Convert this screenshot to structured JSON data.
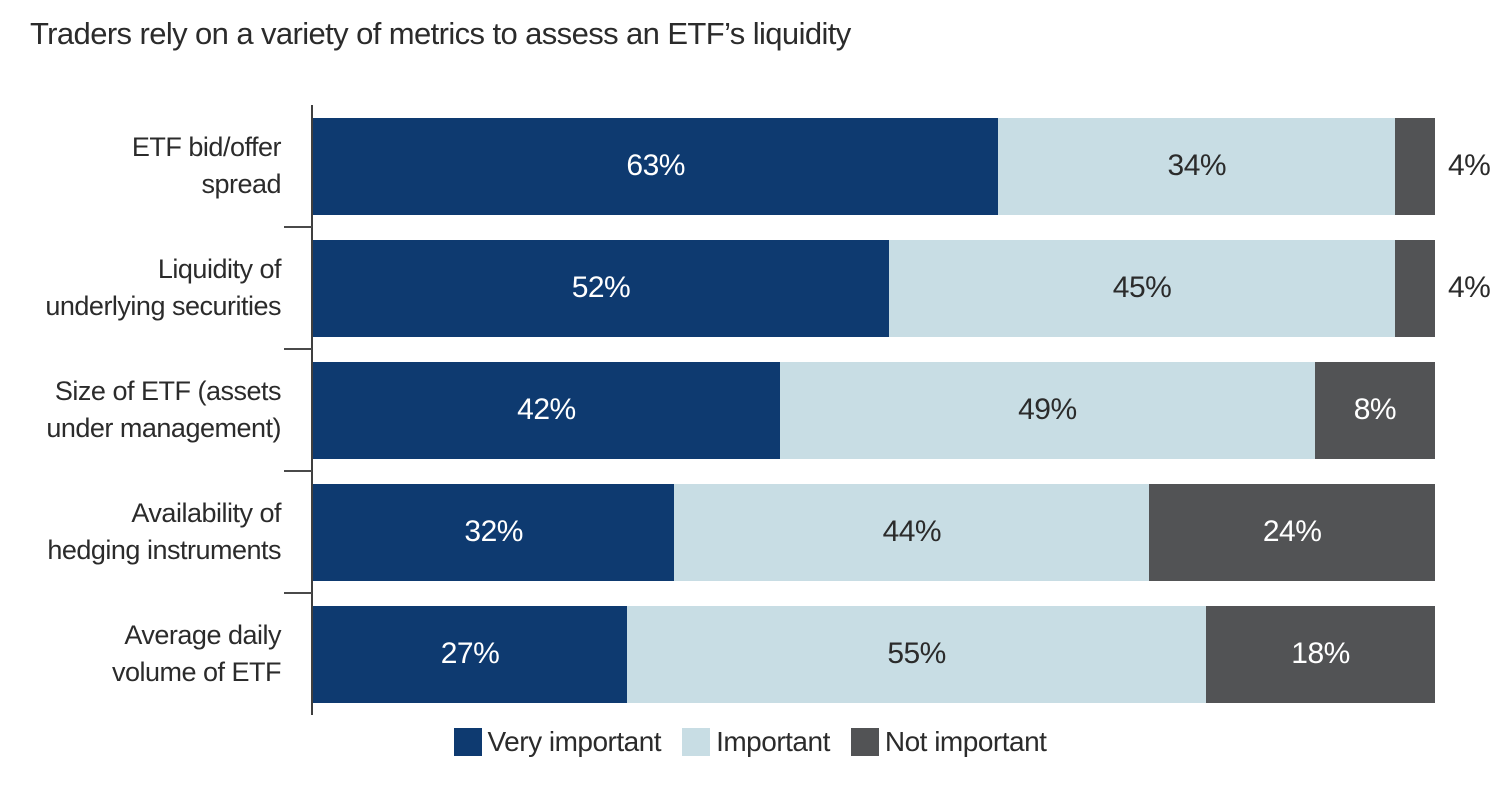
{
  "title": "Traders rely on a variety of metrics to assess an ETF’s liquidity",
  "colors": {
    "very_important": "#0e3a70",
    "important": "#c8dde4",
    "not_important": "#525355",
    "axis": "#3f3f3f",
    "text_dark": "#2b2b2b",
    "text_light": "#ffffff"
  },
  "chart_data": {
    "type": "bar",
    "orientation": "horizontal",
    "stacked": true,
    "unit": "%",
    "title": "Traders rely on a variety of metrics to assess an ETF’s liquidity",
    "categories": [
      "ETF bid/offer spread",
      "Liquidity of underlying securities",
      "Size of ETF (assets under management)",
      "Availability of hedging instruments",
      "Average daily volume of ETF"
    ],
    "categories_lines": [
      [
        "ETF bid/offer",
        "spread"
      ],
      [
        "Liquidity of",
        "underlying securities"
      ],
      [
        "Size of ETF (assets",
        "under management)"
      ],
      [
        "Availability of",
        "hedging instruments"
      ],
      [
        "Average daily",
        "volume of ETF"
      ]
    ],
    "series": [
      {
        "name": "Very important",
        "color": "#0e3a70",
        "label_color": "#ffffff",
        "values": [
          63,
          52,
          42,
          32,
          27
        ]
      },
      {
        "name": "Important",
        "color": "#c8dde4",
        "label_color": "#2b2b2b",
        "values": [
          34,
          45,
          49,
          44,
          55
        ]
      },
      {
        "name": "Not important",
        "color": "#525355",
        "label_color": "#ffffff",
        "values": [
          4,
          4,
          8,
          24,
          18
        ]
      }
    ],
    "value_labels": [
      [
        "63%",
        "34%",
        "4%"
      ],
      [
        "52%",
        "45%",
        "4%"
      ],
      [
        "42%",
        "49%",
        "8%"
      ],
      [
        "32%",
        "44%",
        "24%"
      ],
      [
        "27%",
        "55%",
        "18%"
      ]
    ],
    "legend": [
      "Very important",
      "Important",
      "Not important"
    ],
    "legend_position": "bottom",
    "grid": false,
    "xlim": [
      0,
      100
    ]
  }
}
